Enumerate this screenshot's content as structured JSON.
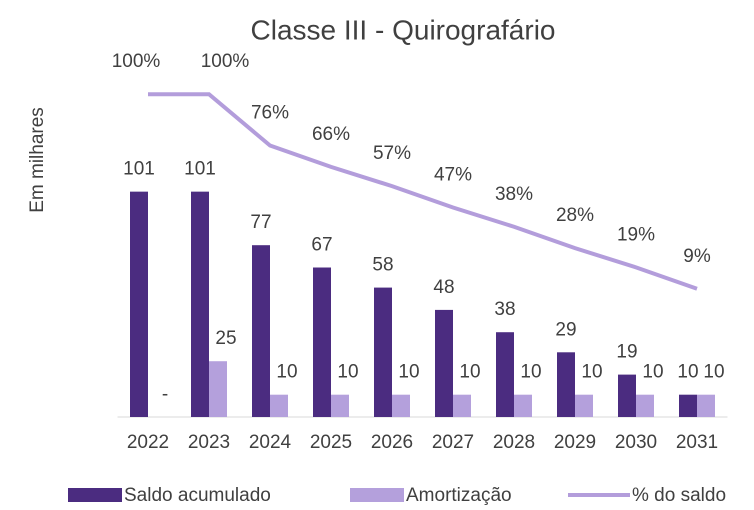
{
  "chart_data": {
    "type": "bar-line",
    "title": "Classe III - Quirografário",
    "y_axis_label": "Em milhares",
    "categories": [
      "2022",
      "2023",
      "2024",
      "2025",
      "2026",
      "2027",
      "2028",
      "2029",
      "2030",
      "2031"
    ],
    "series": [
      {
        "name": "Saldo acumulado",
        "type": "bar",
        "color": "#4b2c80",
        "values": [
          101,
          101,
          77,
          67,
          58,
          48,
          38,
          29,
          19,
          10
        ]
      },
      {
        "name": "Amortização",
        "type": "bar",
        "color": "#b4a0dc",
        "values": [
          0,
          25,
          10,
          10,
          10,
          10,
          10,
          10,
          10,
          10
        ],
        "value_labels": [
          "-",
          "25",
          "10",
          "10",
          "10",
          "10",
          "10",
          "10",
          "10",
          "10"
        ]
      },
      {
        "name": "% do saldo",
        "type": "line",
        "axis": "y2",
        "color": "#b39ddb",
        "values": [
          100,
          100,
          76,
          66,
          57,
          47,
          38,
          28,
          19,
          9
        ],
        "value_labels": [
          "100%",
          "100%",
          "76%",
          "66%",
          "57%",
          "47%",
          "38%",
          "28%",
          "19%",
          "9%"
        ]
      }
    ],
    "ylim": [
      0,
      160
    ],
    "y2lim": [
      -51,
      116
    ],
    "legend": "bottom"
  }
}
